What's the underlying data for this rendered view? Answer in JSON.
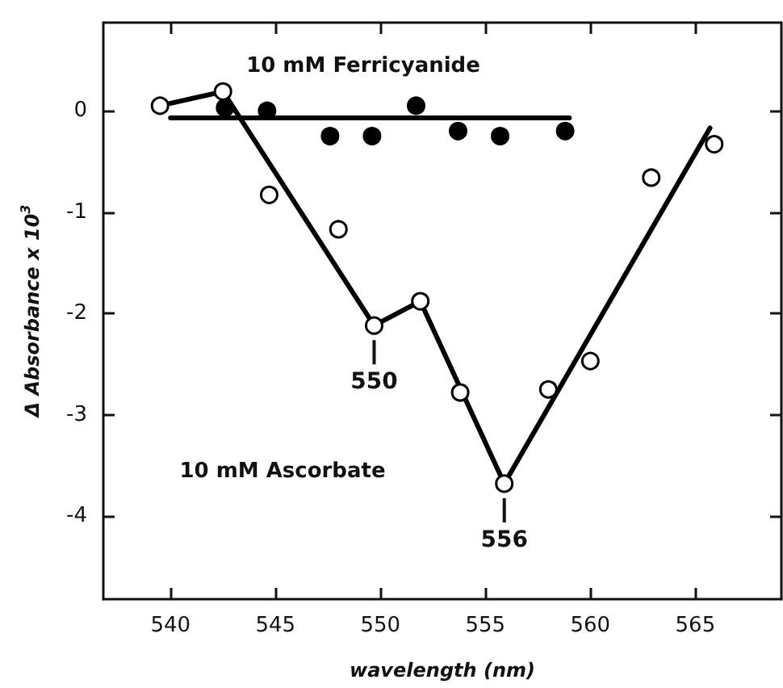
{
  "chart_data": {
    "type": "scatter",
    "xlabel": "wavelength (nm)",
    "ylabel": "Δ Absorbance x 10$^{3}$",
    "xlim": [
      536.8,
      569.1
    ],
    "ylim": [
      -4.82,
      0.87
    ],
    "xticks": [
      540,
      545,
      550,
      555,
      560,
      565
    ],
    "yticks": [
      0,
      -1,
      -2,
      -3,
      -4
    ],
    "grid": false,
    "series": [
      {
        "type": "line",
        "color": "#000000",
        "marker": "none",
        "x": [
          540,
          559
        ],
        "values": [
          -0.07,
          -0.07
        ]
      },
      {
        "type": "line",
        "color": "#000000",
        "marker": "none",
        "x": [
          539.5,
          542.5,
          549.7,
          551.9,
          555.9,
          565.7
        ],
        "values": [
          0.05,
          0.19,
          -2.12,
          -1.88,
          -3.68,
          -0.17
        ]
      },
      {
        "color": "#000000",
        "marker": "circle",
        "x": [
          542.6,
          544.6,
          547.6,
          549.6,
          551.7,
          553.7,
          555.7,
          558.8
        ],
        "values": [
          0.03,
          0.0,
          -0.25,
          -0.25,
          0.05,
          -0.2,
          -0.25,
          -0.2
        ]
      },
      {
        "color": "#ffffff",
        "marker": "circle",
        "x": [
          539.5,
          542.5,
          544.7,
          548,
          549.7,
          551.9,
          553.8,
          555.9,
          558,
          560,
          562.9,
          565.9
        ],
        "values": [
          0.05,
          0.19,
          -0.83,
          -1.17,
          -2.12,
          -1.88,
          -2.78,
          -3.68,
          -2.75,
          -2.47,
          -0.66,
          -0.33
        ]
      }
    ],
    "annotations": [
      "10 mM Ferricyanide",
      "10 mM Ascorbate",
      {
        "text": "550",
        "x": 549.7,
        "y": -2.12
      },
      {
        "text": "556",
        "x": 555.9,
        "y": -3.68
      }
    ]
  }
}
